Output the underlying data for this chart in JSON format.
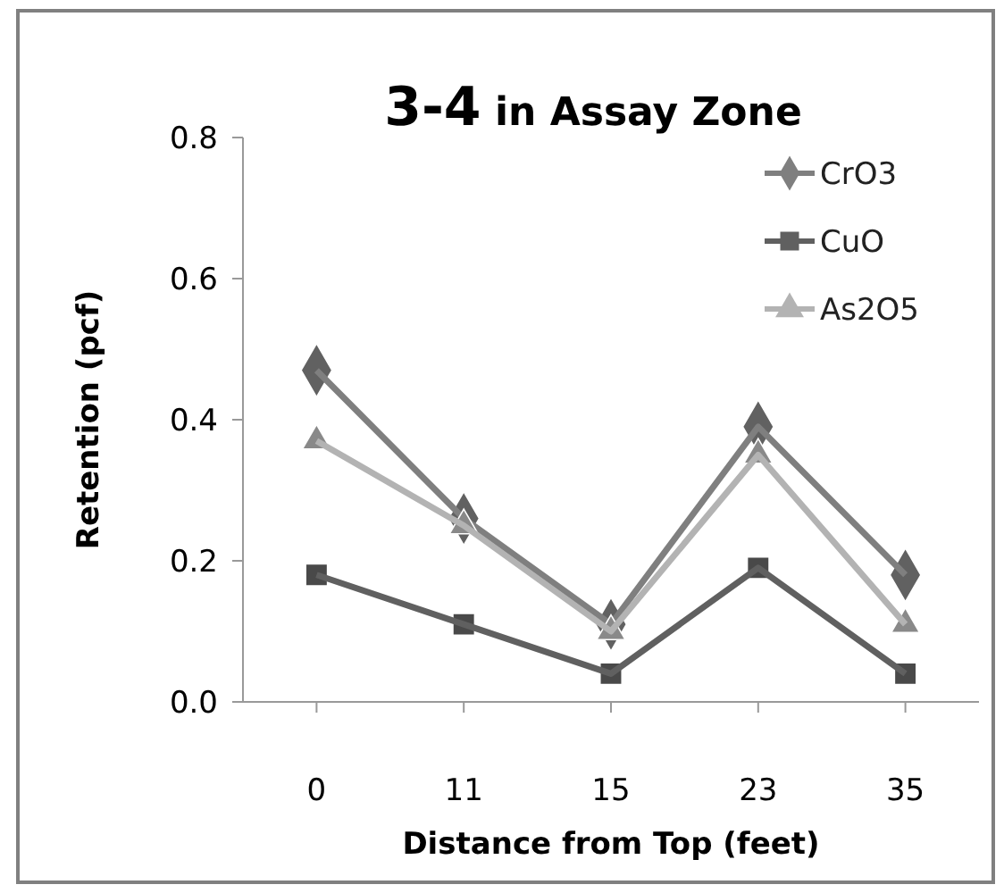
{
  "chart_data": {
    "type": "line",
    "title": "3-4 in Assay Zone",
    "xlabel": "Distance from Top (feet)",
    "ylabel": "Retention (pcf)",
    "categories": [
      "0",
      "11",
      "15",
      "23",
      "35"
    ],
    "series": [
      {
        "name": "CrO3",
        "color": "#7f7f7f",
        "marker": "diamond",
        "values": [
          0.47,
          0.26,
          0.11,
          0.39,
          0.18
        ]
      },
      {
        "name": "CuO",
        "color": "#606060",
        "marker": "square",
        "values": [
          0.18,
          0.11,
          0.04,
          0.19,
          0.04
        ]
      },
      {
        "name": "As2O5",
        "color": "#b3b3b3",
        "marker": "triangle",
        "values": [
          0.37,
          0.25,
          0.1,
          0.35,
          0.11
        ]
      }
    ],
    "ylim": [
      0,
      0.8
    ],
    "yticks": [
      {
        "value": 0,
        "label": "0.0"
      },
      {
        "value": 0.2,
        "label": "0.2"
      },
      {
        "value": 0.4,
        "label": "0.4"
      },
      {
        "value": 0.6,
        "label": "0.6"
      },
      {
        "value": 0.8,
        "label": "0.8"
      }
    ],
    "grid": false,
    "legend": "top right"
  }
}
